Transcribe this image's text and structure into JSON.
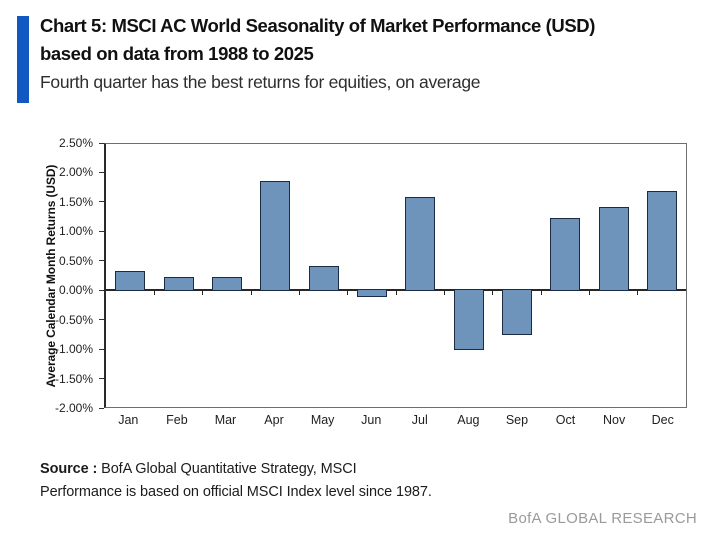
{
  "header": {
    "title_line1": "Chart 5: MSCI AC World Seasonality of Market Performance (USD)",
    "title_line2": "based on data from 1988 to 2025",
    "subtitle": "Fourth quarter has the best returns for equities, on average",
    "accent_color": "#1159c1"
  },
  "chart_data": {
    "type": "bar",
    "title": "MSCI AC World average calendar month returns (USD), 1988-2025",
    "categories": [
      "Jan",
      "Feb",
      "Mar",
      "Apr",
      "May",
      "Jun",
      "Jul",
      "Aug",
      "Sep",
      "Oct",
      "Nov",
      "Dec"
    ],
    "values": [
      0.33,
      0.22,
      0.23,
      1.87,
      0.41,
      -0.12,
      1.6,
      -1.02,
      -0.77,
      1.24,
      1.43,
      1.7
    ],
    "xlabel": "",
    "ylabel": "Average Calendar Month Returns (USD)",
    "ylim": [
      -2.0,
      2.5
    ],
    "ytick_step": 0.5,
    "ytick_labels": [
      "2.50%",
      "2.00%",
      "1.50%",
      "1.00%",
      "0.50%",
      "0.00%",
      "-0.50%",
      "-1.00%",
      "-1.50%",
      "-2.00%"
    ],
    "grid": false,
    "legend": "none",
    "bar_fill": "#6f94bc",
    "bar_border": "#1c2b44"
  },
  "footer": {
    "source_label": "Source :",
    "source_text": " BofA Global Quantitative Strategy, MSCI",
    "note": "Performance is based on official MSCI Index level since 1987.",
    "brand": "BofA GLOBAL RESEARCH"
  }
}
